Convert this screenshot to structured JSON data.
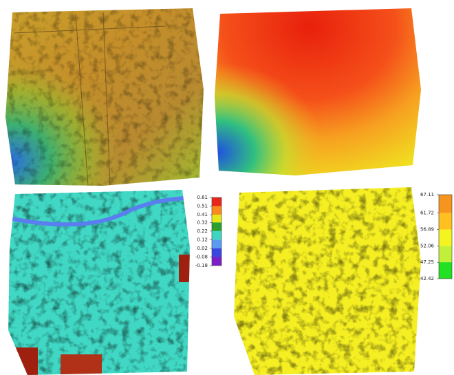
{
  "legends": [
    {
      "ticks": [
        0.61,
        0.51,
        0.41,
        0.32,
        0.22,
        0.12,
        0.02,
        -0.08,
        -0.18
      ],
      "colors": [
        "#e8261c",
        "#f98a1e",
        "#e6e619",
        "#2ca02c",
        "#3ed6c0",
        "#5b9bf0",
        "#3a46e0",
        "#7a1fc8"
      ]
    },
    {
      "ticks": [
        67.11,
        61.72,
        56.89,
        52.06,
        47.25,
        42.42
      ],
      "colors": [
        "#f7941d",
        "#ffc020",
        "#f4f420",
        "#c2f03a",
        "#22e022"
      ]
    }
  ]
}
